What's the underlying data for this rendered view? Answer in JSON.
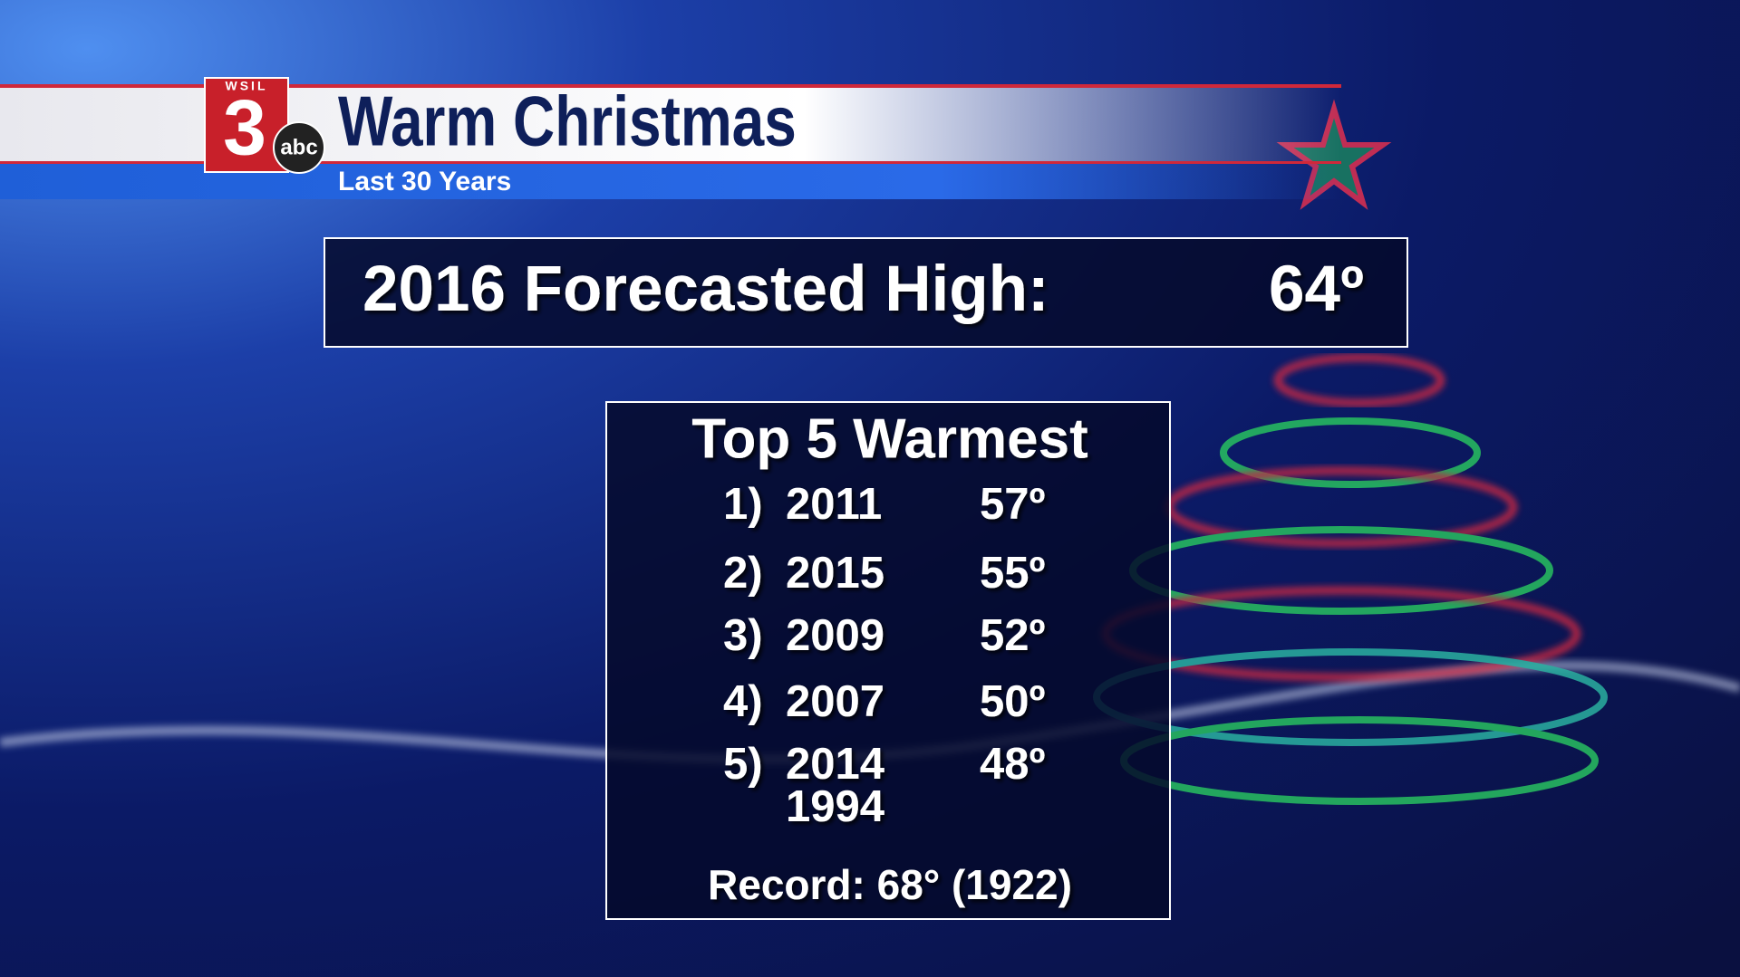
{
  "logo": {
    "station": "WSIL",
    "channel": "3",
    "network": "abc"
  },
  "header": {
    "title": "Warm Christmas",
    "subtitle": "Last 30 Years"
  },
  "forecast": {
    "label": "2016 Forecasted High:",
    "value": "64º"
  },
  "top5": {
    "title": "Top 5 Warmest",
    "rows": [
      {
        "rank": "1)",
        "years": [
          "2011"
        ],
        "temp": "57º"
      },
      {
        "rank": "2)",
        "years": [
          "2015"
        ],
        "temp": "55º"
      },
      {
        "rank": "3)",
        "years": [
          "2009"
        ],
        "temp": "52º"
      },
      {
        "rank": "4)",
        "years": [
          "2007"
        ],
        "temp": "50º"
      },
      {
        "rank": "5)",
        "years": [
          "2014",
          "1994"
        ],
        "temp": "48º"
      }
    ],
    "record": "Record: 68° (1922)"
  }
}
